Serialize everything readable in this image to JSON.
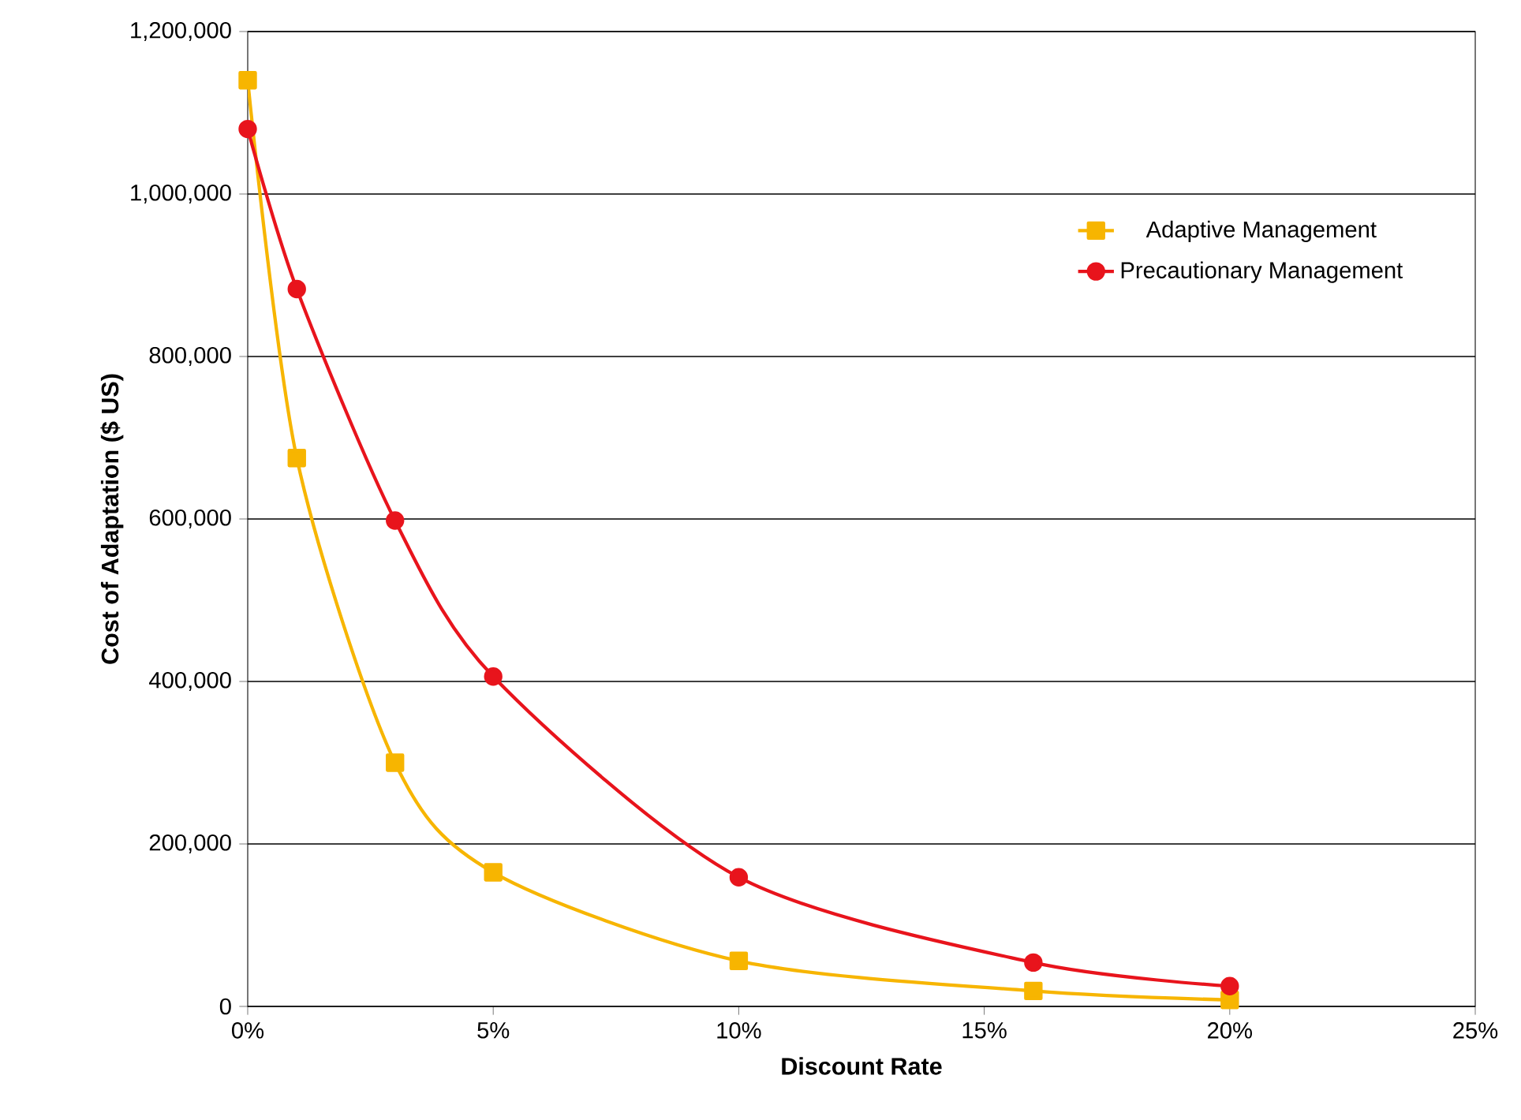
{
  "chart_data": {
    "type": "line",
    "xlabel": "Discount Rate",
    "ylabel": "Cost of Adaptation ($ US)",
    "x": [
      0,
      1,
      3,
      5,
      10,
      16,
      20
    ],
    "series": [
      {
        "name": "Adaptive Management",
        "color": "#f7b500",
        "marker": "square",
        "values": [
          1140000,
          675000,
          300000,
          165000,
          56000,
          19000,
          8000
        ]
      },
      {
        "name": "Precautionary Management",
        "color": "#e8141c",
        "marker": "circle",
        "values": [
          1080000,
          883000,
          598000,
          406000,
          159000,
          54000,
          25000
        ]
      }
    ],
    "xlim": [
      0,
      25
    ],
    "ylim": [
      0,
      1200000
    ],
    "xticks": [
      {
        "value": 0,
        "label": "0%"
      },
      {
        "value": 5,
        "label": "5%"
      },
      {
        "value": 10,
        "label": "10%"
      },
      {
        "value": 15,
        "label": "15%"
      },
      {
        "value": 20,
        "label": "20%"
      },
      {
        "value": 25,
        "label": "25%"
      }
    ],
    "yticks": [
      {
        "value": 0,
        "label": "0"
      },
      {
        "value": 200000,
        "label": "200,000"
      },
      {
        "value": 400000,
        "label": "400,000"
      },
      {
        "value": 600000,
        "label": "600,000"
      },
      {
        "value": 800000,
        "label": "800,000"
      },
      {
        "value": 1000000,
        "label": "1,000,000"
      },
      {
        "value": 1200000,
        "label": "1,200,000"
      }
    ],
    "grid": "y",
    "legend": "top right"
  }
}
